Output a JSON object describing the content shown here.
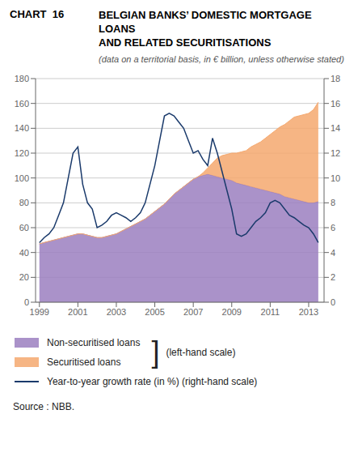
{
  "chart_data": {
    "type": "area",
    "title": "BELGIAN BANKS’ DOMESTIC MORTGAGE LOANS\nAND RELATED SECURITISATIONS",
    "subtitle": "(data on a territorial basis, in € billion, unless otherwise stated)",
    "annotations": [
      "CHART  16",
      "]",
      "(left-hand scale)",
      "Source : NBB."
    ],
    "stacked": true,
    "grid": true,
    "legend": "bottom",
    "xlim": [
      1998.8,
      2013.8
    ],
    "xticks": [
      1999,
      2001,
      2003,
      2005,
      2007,
      2009,
      2011,
      2013
    ],
    "ylim": [
      0,
      180
    ],
    "yticks": [
      0,
      20,
      40,
      60,
      80,
      100,
      120,
      140,
      160,
      180
    ],
    "y2lim": [
      0,
      18
    ],
    "y2ticks": [
      0,
      2,
      4,
      6,
      8,
      10,
      12,
      14,
      16,
      18
    ],
    "x": [
      1999.0,
      1999.25,
      1999.5,
      1999.75,
      2000.0,
      2000.25,
      2000.5,
      2000.75,
      2001.0,
      2001.25,
      2001.5,
      2001.75,
      2002.0,
      2002.25,
      2002.5,
      2002.75,
      2003.0,
      2003.25,
      2003.5,
      2003.75,
      2004.0,
      2004.25,
      2004.5,
      2004.75,
      2005.0,
      2005.25,
      2005.5,
      2005.75,
      2006.0,
      2006.25,
      2006.5,
      2006.75,
      2007.0,
      2007.25,
      2007.5,
      2007.75,
      2008.0,
      2008.25,
      2008.5,
      2008.75,
      2009.0,
      2009.25,
      2009.5,
      2009.75,
      2010.0,
      2010.25,
      2010.5,
      2010.75,
      2011.0,
      2011.25,
      2011.5,
      2011.75,
      2012.0,
      2012.25,
      2012.5,
      2012.75,
      2013.0,
      2013.25,
      2013.5
    ],
    "series": [
      {
        "name": "Non-securitised loans",
        "type": "area",
        "color": "#9b7fc0",
        "values": [
          47,
          48,
          49,
          50,
          51,
          52,
          53,
          54,
          55,
          55,
          54,
          53,
          52,
          52,
          53,
          54,
          55,
          57,
          59,
          61,
          63,
          65,
          67,
          70,
          73,
          76,
          79,
          83,
          87,
          90,
          93,
          96,
          99,
          101,
          102,
          103,
          102,
          101,
          100,
          99,
          98,
          96,
          95,
          94,
          93,
          92,
          91,
          90,
          89,
          88,
          87,
          85,
          84,
          83,
          82,
          81,
          80,
          80,
          81
        ]
      },
      {
        "name": "Securitised loans",
        "type": "area",
        "color": "#f5a86e",
        "values": [
          0,
          0,
          0,
          0,
          0,
          0,
          0,
          0,
          0,
          0,
          0,
          0,
          0,
          0,
          0,
          0,
          0,
          0,
          0,
          0,
          0,
          0,
          0,
          0,
          0,
          0,
          0,
          0,
          0,
          0,
          0,
          0,
          0,
          0,
          2,
          5,
          10,
          15,
          18,
          20,
          22,
          24,
          26,
          28,
          32,
          35,
          38,
          42,
          46,
          50,
          54,
          58,
          62,
          66,
          68,
          70,
          72,
          75,
          80
        ]
      },
      {
        "name": "Year-to-year growth rate (in %) (right-hand scale)",
        "type": "line",
        "axis": "y2",
        "color": "#1a3a6b",
        "values": [
          4.8,
          5.2,
          5.5,
          6.0,
          7.0,
          8.0,
          10.0,
          12.0,
          12.5,
          9.5,
          8.0,
          7.5,
          6.0,
          6.2,
          6.5,
          7.0,
          7.2,
          7.0,
          6.8,
          6.5,
          6.8,
          7.2,
          8.0,
          9.5,
          11.0,
          13.0,
          15.0,
          15.2,
          15.0,
          14.5,
          14.0,
          13.0,
          12.0,
          12.2,
          11.5,
          11.0,
          13.2,
          12.0,
          10.5,
          9.0,
          7.5,
          5.5,
          5.3,
          5.5,
          6.0,
          6.5,
          6.8,
          7.2,
          8.0,
          8.2,
          8.0,
          7.5,
          7.0,
          6.8,
          6.5,
          6.2,
          6.0,
          5.5,
          4.8
        ]
      }
    ]
  }
}
